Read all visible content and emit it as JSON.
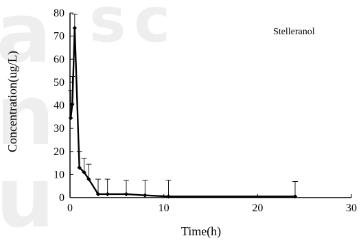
{
  "chart_data": {
    "type": "line",
    "title": "",
    "xlabel": "Time(h)",
    "ylabel": "Concentration(ug/L)",
    "xlim": [
      0,
      30
    ],
    "ylim": [
      0,
      80
    ],
    "x_ticks": [
      0,
      10,
      20,
      30
    ],
    "y_ticks": [
      0,
      10,
      20,
      30,
      40,
      50,
      60,
      70,
      80
    ],
    "grid": false,
    "series": [
      {
        "name": "Stelleranol",
        "color": "#000000",
        "marker": "diamond",
        "x": [
          0.08,
          0.25,
          0.5,
          1,
          1.5,
          2,
          3,
          4,
          6,
          8,
          10.5,
          24
        ],
        "y": [
          34.5,
          40.5,
          73.5,
          13,
          11,
          8,
          1.5,
          1.5,
          1.5,
          1,
          0.5,
          0.5
        ],
        "error_upper": [
          12,
          12,
          6,
          7,
          6,
          6.5,
          6.5,
          6.5,
          6,
          6.5,
          7,
          6.5
        ]
      }
    ]
  }
}
